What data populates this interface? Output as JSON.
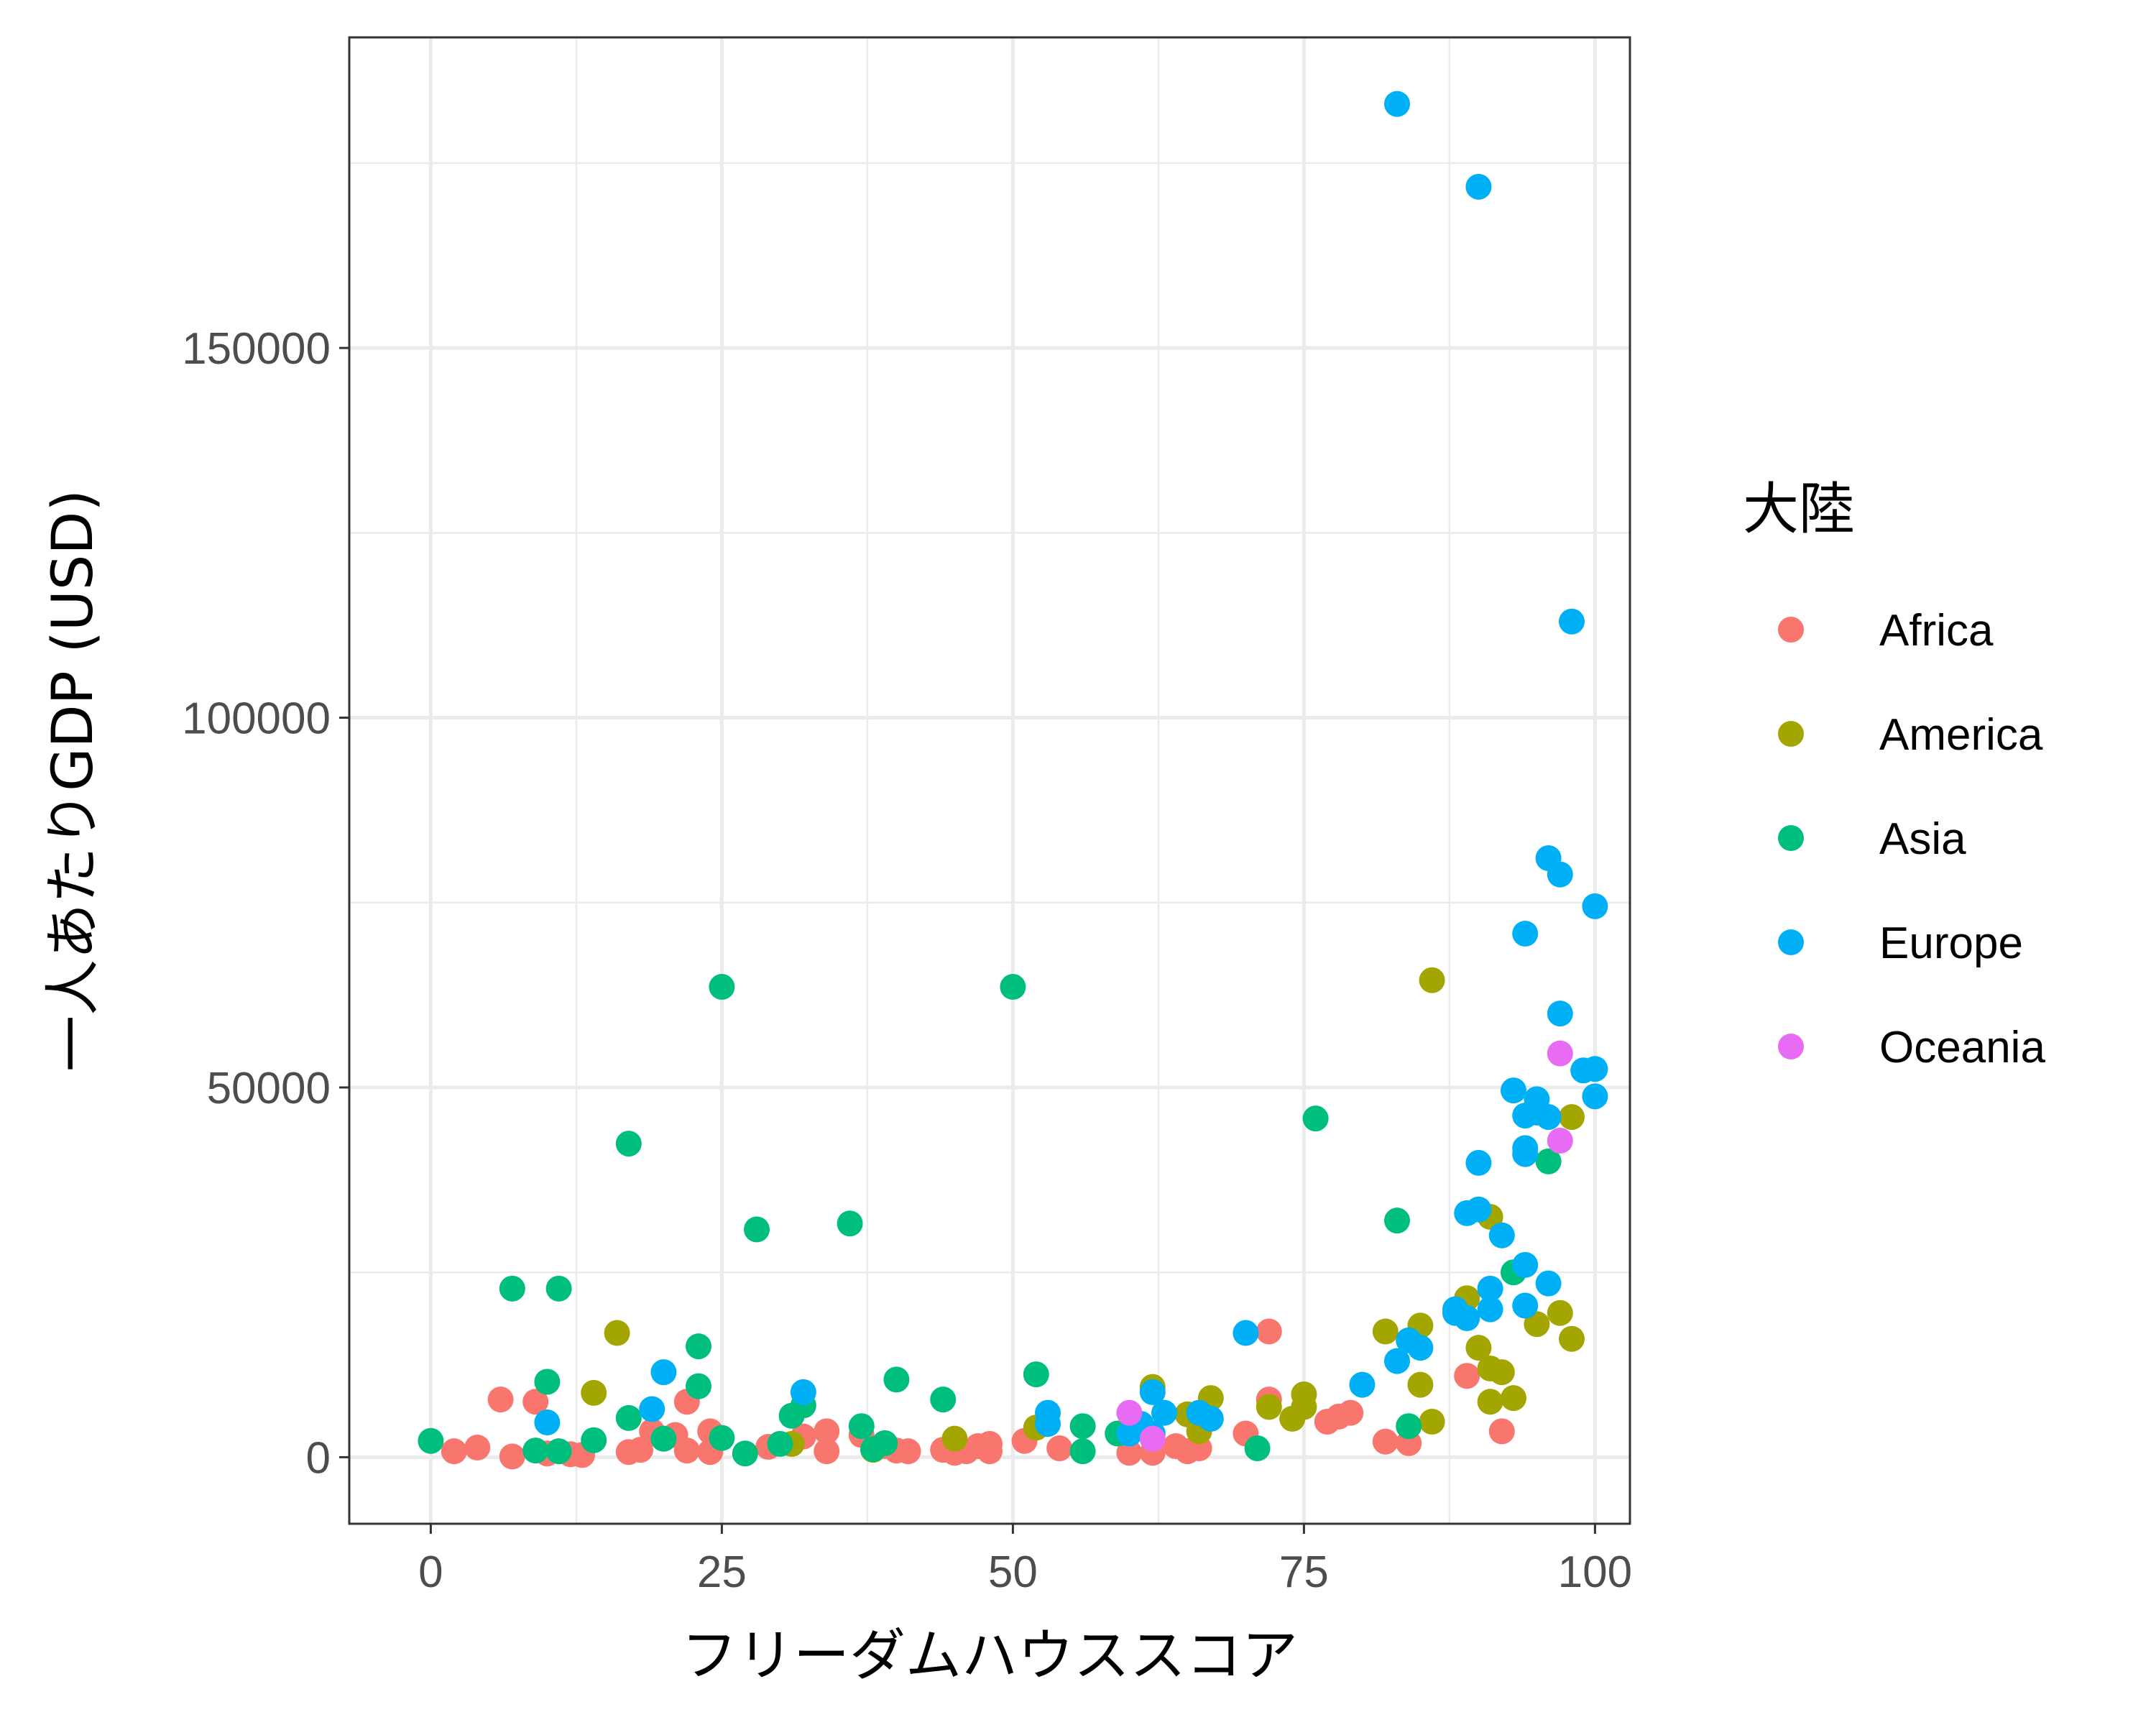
{
  "chart_data": {
    "type": "scatter",
    "xlabel": "フリーダムハウススコア",
    "ylabel": "一人あたりGDP (USD)",
    "xlim": [
      -7,
      103
    ],
    "ylim": [
      -9000,
      192000
    ],
    "x_ticks": [
      0,
      25,
      50,
      75,
      100
    ],
    "y_ticks": [
      0,
      50000,
      100000,
      150000
    ],
    "x_tick_labels": [
      "0",
      "25",
      "50",
      "75",
      "100"
    ],
    "y_tick_labels": [
      "0",
      "50000",
      "100000",
      "150000"
    ],
    "grid": true,
    "legend": {
      "title": "大陸",
      "placement": "right",
      "entries": [
        {
          "name": "Africa",
          "color": "#F8766D"
        },
        {
          "name": "America",
          "color": "#A3A500"
        },
        {
          "name": "Asia",
          "color": "#00BF7D"
        },
        {
          "name": "Europe",
          "color": "#00B0F6"
        },
        {
          "name": "Oceania",
          "color": "#E76BF3"
        }
      ]
    },
    "series": [
      {
        "name": "Africa",
        "color": "#F8766D",
        "points": [
          [
            2,
            800
          ],
          [
            4,
            1300
          ],
          [
            6,
            7800
          ],
          [
            7,
            100
          ],
          [
            9,
            7500
          ],
          [
            10,
            500
          ],
          [
            12,
            400
          ],
          [
            13,
            300
          ],
          [
            17,
            700
          ],
          [
            18,
            1000
          ],
          [
            19,
            3500
          ],
          [
            20,
            2500
          ],
          [
            21,
            3000
          ],
          [
            22,
            7500
          ],
          [
            22,
            900
          ],
          [
            24,
            3500
          ],
          [
            24,
            700
          ],
          [
            29,
            1400
          ],
          [
            32,
            2800
          ],
          [
            34,
            3500
          ],
          [
            34,
            800
          ],
          [
            37,
            3000
          ],
          [
            39,
            1500
          ],
          [
            40,
            900
          ],
          [
            41,
            800
          ],
          [
            44,
            1000
          ],
          [
            45,
            600
          ],
          [
            46,
            800
          ],
          [
            47,
            1500
          ],
          [
            48,
            800
          ],
          [
            48,
            1800
          ],
          [
            51,
            2200
          ],
          [
            54,
            1200
          ],
          [
            60,
            600
          ],
          [
            62,
            600
          ],
          [
            64,
            1500
          ],
          [
            65,
            800
          ],
          [
            66,
            1200
          ],
          [
            70,
            3200
          ],
          [
            72,
            17000
          ],
          [
            72,
            7800
          ],
          [
            77,
            4800
          ],
          [
            78,
            5500
          ],
          [
            79,
            6000
          ],
          [
            82,
            2100
          ],
          [
            84,
            1900
          ],
          [
            89,
            11000
          ],
          [
            92,
            3500
          ]
        ]
      },
      {
        "name": "America",
        "color": "#A3A500",
        "points": [
          [
            14,
            8700
          ],
          [
            16,
            16800
          ],
          [
            31,
            1800
          ],
          [
            38,
            1000
          ],
          [
            45,
            2500
          ],
          [
            52,
            4000
          ],
          [
            62,
            9500
          ],
          [
            65,
            5800
          ],
          [
            66,
            3500
          ],
          [
            67,
            8000
          ],
          [
            72,
            6800
          ],
          [
            74,
            5200
          ],
          [
            75,
            8500
          ],
          [
            75,
            6800
          ],
          [
            82,
            17000
          ],
          [
            85,
            17800
          ],
          [
            85,
            9800
          ],
          [
            86,
            4800
          ],
          [
            86,
            64500
          ],
          [
            89,
            21500
          ],
          [
            90,
            14800
          ],
          [
            91,
            32500
          ],
          [
            91,
            12000
          ],
          [
            91,
            7500
          ],
          [
            92,
            11500
          ],
          [
            93,
            8000
          ],
          [
            95,
            18000
          ],
          [
            97,
            19500
          ],
          [
            98,
            46000
          ],
          [
            98,
            16000
          ]
        ]
      },
      {
        "name": "Asia",
        "color": "#00BF7D",
        "points": [
          [
            0,
            2200
          ],
          [
            7,
            22800
          ],
          [
            9,
            900
          ],
          [
            10,
            10200
          ],
          [
            11,
            22800
          ],
          [
            11,
            800
          ],
          [
            14,
            2300
          ],
          [
            17,
            5300
          ],
          [
            17,
            42400
          ],
          [
            20,
            2500
          ],
          [
            23,
            15000
          ],
          [
            23,
            9600
          ],
          [
            25,
            63600
          ],
          [
            25,
            2600
          ],
          [
            27,
            500
          ],
          [
            28,
            30800
          ],
          [
            30,
            1800
          ],
          [
            31,
            5600
          ],
          [
            32,
            7000
          ],
          [
            36,
            31600
          ],
          [
            37,
            4200
          ],
          [
            38,
            1100
          ],
          [
            39,
            1900
          ],
          [
            40,
            10500
          ],
          [
            44,
            7800
          ],
          [
            50,
            63600
          ],
          [
            52,
            11200
          ],
          [
            56,
            4200
          ],
          [
            56,
            800
          ],
          [
            59,
            3200
          ],
          [
            71,
            1200
          ],
          [
            76,
            45800
          ],
          [
            83,
            32000
          ],
          [
            84,
            4200
          ],
          [
            93,
            25000
          ],
          [
            96,
            40000
          ]
        ]
      },
      {
        "name": "Europe",
        "color": "#00B0F6",
        "points": [
          [
            10,
            4700
          ],
          [
            19,
            6500
          ],
          [
            20,
            11500
          ],
          [
            32,
            8800
          ],
          [
            53,
            6000
          ],
          [
            53,
            4500
          ],
          [
            60,
            3200
          ],
          [
            61,
            4500
          ],
          [
            62,
            8800
          ],
          [
            62,
            3200
          ],
          [
            63,
            6000
          ],
          [
            66,
            6000
          ],
          [
            67,
            5200
          ],
          [
            70,
            16800
          ],
          [
            80,
            9800
          ],
          [
            83,
            13000
          ],
          [
            83,
            183000
          ],
          [
            84,
            15800
          ],
          [
            85,
            14800
          ],
          [
            88,
            20000
          ],
          [
            88,
            19500
          ],
          [
            89,
            33000
          ],
          [
            89,
            18800
          ],
          [
            90,
            33500
          ],
          [
            90,
            171800
          ],
          [
            90,
            39800
          ],
          [
            91,
            22800
          ],
          [
            91,
            20000
          ],
          [
            92,
            30000
          ],
          [
            93,
            49600
          ],
          [
            94,
            26000
          ],
          [
            94,
            41000
          ],
          [
            94,
            41800
          ],
          [
            94,
            46200
          ],
          [
            94,
            70800
          ],
          [
            94,
            20500
          ],
          [
            95,
            48400
          ],
          [
            95,
            46600
          ],
          [
            96,
            46000
          ],
          [
            96,
            81000
          ],
          [
            96,
            23500
          ],
          [
            97,
            78800
          ],
          [
            97,
            60000
          ],
          [
            98,
            113000
          ],
          [
            99,
            52300
          ],
          [
            100,
            52500
          ],
          [
            100,
            48800
          ],
          [
            100,
            74500
          ]
        ]
      },
      {
        "name": "Oceania",
        "color": "#E76BF3",
        "points": [
          [
            60,
            6000
          ],
          [
            62,
            2500
          ],
          [
            97,
            54600
          ],
          [
            97,
            42800
          ]
        ]
      }
    ]
  }
}
